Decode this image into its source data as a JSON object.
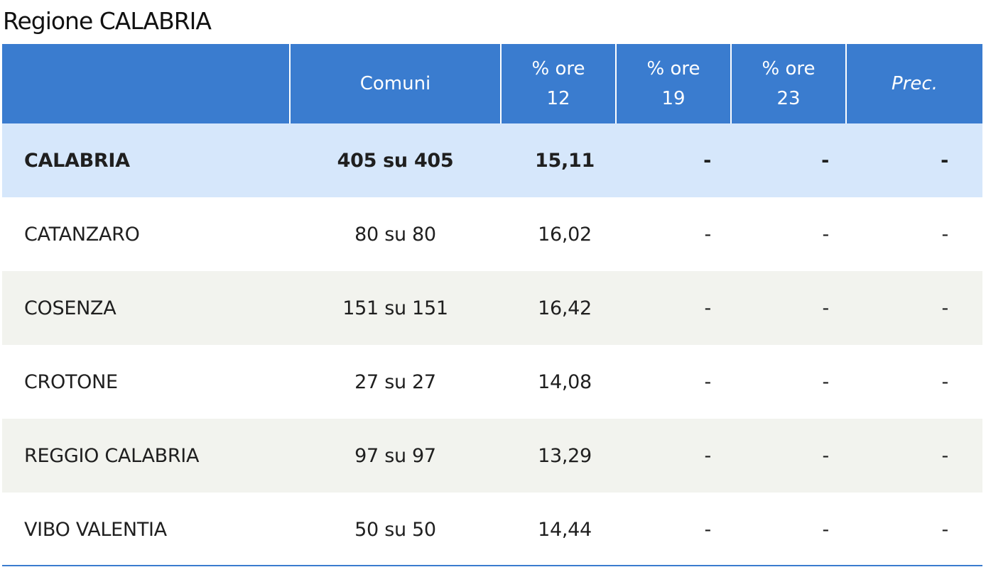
{
  "title": "Regione CALABRIA",
  "table": {
    "headers": {
      "name": "",
      "comuni": "Comuni",
      "ore12_line1": "% ore",
      "ore12_line2": "12",
      "ore19_line1": "% ore",
      "ore19_line2": "19",
      "ore23_line1": "% ore",
      "ore23_line2": "23",
      "prec": "Prec."
    },
    "rows": [
      {
        "name": "CALABRIA",
        "comuni": "405 su 405",
        "ore12": "15,11",
        "ore19": "-",
        "ore23": "-",
        "prec": "-"
      },
      {
        "name": "CATANZARO",
        "comuni": "80 su 80",
        "ore12": "16,02",
        "ore19": "-",
        "ore23": "-",
        "prec": "-"
      },
      {
        "name": "COSENZA",
        "comuni": "151 su 151",
        "ore12": "16,42",
        "ore19": "-",
        "ore23": "-",
        "prec": "-"
      },
      {
        "name": "CROTONE",
        "comuni": "27 su 27",
        "ore12": "14,08",
        "ore19": "-",
        "ore23": "-",
        "prec": "-"
      },
      {
        "name": "REGGIO CALABRIA",
        "comuni": "97 su 97",
        "ore12": "13,29",
        "ore19": "-",
        "ore23": "-",
        "prec": "-"
      },
      {
        "name": "VIBO VALENTIA",
        "comuni": "50 su 50",
        "ore12": "14,44",
        "ore19": "-",
        "ore23": "-",
        "prec": "-"
      }
    ]
  },
  "colors": {
    "header_bg": "#3a7ccf",
    "total_row_bg": "#d6e7fb",
    "alt_row_bg": "#f2f3ee"
  }
}
